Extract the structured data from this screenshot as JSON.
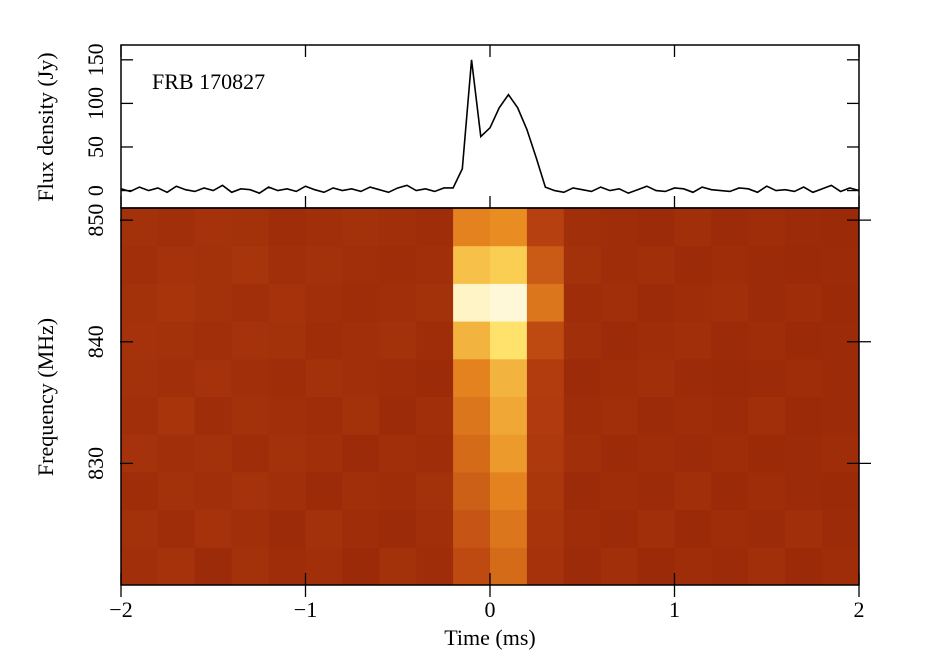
{
  "chart_data": [
    {
      "type": "line",
      "ylabel": "Flux density (Jy)",
      "annotation": "FRB 170827",
      "x": [
        -2,
        -1.95,
        -1.9,
        -1.85,
        -1.8,
        -1.75,
        -1.7,
        -1.65,
        -1.6,
        -1.55,
        -1.5,
        -1.45,
        -1.4,
        -1.35,
        -1.3,
        -1.25,
        -1.2,
        -1.15,
        -1.1,
        -1.05,
        -1,
        -0.95,
        -0.9,
        -0.85,
        -0.8,
        -0.75,
        -0.7,
        -0.65,
        -0.6,
        -0.55,
        -0.5,
        -0.45,
        -0.4,
        -0.35,
        -0.3,
        -0.25,
        -0.2,
        -0.15,
        -0.1,
        -0.05,
        0,
        0.05,
        0.1,
        0.15,
        0.2,
        0.25,
        0.3,
        0.35,
        0.4,
        0.45,
        0.5,
        0.55,
        0.6,
        0.65,
        0.7,
        0.75,
        0.8,
        0.85,
        0.9,
        0.95,
        1,
        1.05,
        1.1,
        1.15,
        1.2,
        1.25,
        1.3,
        1.35,
        1.4,
        1.45,
        1.5,
        1.55,
        1.6,
        1.65,
        1.7,
        1.75,
        1.8,
        1.85,
        1.9,
        1.95,
        2
      ],
      "values": [
        2,
        -1,
        4,
        0,
        3,
        -2,
        5,
        1,
        -1,
        3,
        0,
        6,
        -2,
        2,
        1,
        -3,
        4,
        0,
        2,
        -1,
        5,
        1,
        -2,
        3,
        0,
        2,
        -1,
        4,
        1,
        -2,
        3,
        6,
        0,
        2,
        -1,
        3,
        3,
        25,
        150,
        62,
        72,
        95,
        110,
        95,
        70,
        38,
        4,
        0,
        -2,
        3,
        1,
        -1,
        4,
        0,
        2,
        -3,
        1,
        5,
        0,
        -1,
        3,
        2,
        -2,
        4,
        1,
        0,
        -1,
        3,
        2,
        -2,
        5,
        0,
        1,
        -1,
        4,
        -2,
        2,
        6,
        -1,
        3,
        0
      ],
      "color": "#000000",
      "xlim": [
        -2,
        2
      ],
      "xticks": [
        -2,
        -1,
        0,
        1,
        2
      ],
      "ylim": [
        -20,
        167
      ],
      "yticks": [
        0,
        50,
        100,
        150
      ]
    },
    {
      "type": "heatmap",
      "xlabel": "Time (ms)",
      "ylabel": "Frequency (MHz)",
      "xlim": [
        -2,
        2
      ],
      "xticks": [
        {
          "value": -2,
          "label": "−2"
        },
        {
          "value": -1,
          "label": "−1"
        },
        0,
        1,
        2
      ],
      "ylim": [
        820,
        851
      ],
      "yticks": [
        830,
        840,
        850
      ],
      "xbins": [
        -2,
        -1.8,
        -1.6,
        -1.4,
        -1.2,
        -1,
        -0.8,
        -0.6,
        -0.4,
        -0.2,
        0,
        0.2,
        0.4,
        0.6,
        0.8,
        1,
        1.2,
        1.4,
        1.6,
        1.8,
        2
      ],
      "ybins": [
        820,
        823.1,
        826.2,
        829.3,
        832.4,
        835.5,
        838.6,
        841.7,
        844.8,
        847.9,
        851
      ],
      "colormap": [
        "#9a2a08",
        "#b84010",
        "#e88a20",
        "#ffe060",
        "#fff8d8"
      ],
      "z": [
        [
          0.4,
          0.42,
          0.38,
          0.41,
          0.39,
          0.4,
          0.37,
          0.41,
          0.39,
          0.52,
          0.58,
          0.42,
          0.38,
          0.4,
          0.37,
          0.39,
          0.38,
          0.4,
          0.37,
          0.39
        ],
        [
          0.41,
          0.39,
          0.42,
          0.4,
          0.38,
          0.41,
          0.39,
          0.38,
          0.4,
          0.54,
          0.6,
          0.43,
          0.39,
          0.38,
          0.4,
          0.37,
          0.39,
          0.38,
          0.4,
          0.38
        ],
        [
          0.39,
          0.41,
          0.4,
          0.42,
          0.4,
          0.38,
          0.4,
          0.39,
          0.41,
          0.56,
          0.62,
          0.44,
          0.38,
          0.39,
          0.38,
          0.4,
          0.37,
          0.39,
          0.38,
          0.37
        ],
        [
          0.42,
          0.4,
          0.41,
          0.39,
          0.41,
          0.4,
          0.38,
          0.4,
          0.39,
          0.58,
          0.66,
          0.46,
          0.4,
          0.38,
          0.39,
          0.38,
          0.39,
          0.37,
          0.38,
          0.39
        ],
        [
          0.4,
          0.43,
          0.39,
          0.41,
          0.4,
          0.39,
          0.41,
          0.38,
          0.4,
          0.6,
          0.68,
          0.47,
          0.39,
          0.4,
          0.38,
          0.39,
          0.38,
          0.4,
          0.37,
          0.38
        ],
        [
          0.41,
          0.4,
          0.42,
          0.4,
          0.39,
          0.41,
          0.4,
          0.39,
          0.38,
          0.62,
          0.7,
          0.48,
          0.38,
          0.39,
          0.4,
          0.38,
          0.37,
          0.38,
          0.39,
          0.38
        ],
        [
          0.42,
          0.41,
          0.4,
          0.42,
          0.41,
          0.39,
          0.4,
          0.41,
          0.39,
          0.7,
          0.78,
          0.52,
          0.4,
          0.38,
          0.39,
          0.4,
          0.38,
          0.39,
          0.37,
          0.38
        ],
        [
          0.41,
          0.43,
          0.41,
          0.4,
          0.42,
          0.4,
          0.39,
          0.4,
          0.41,
          0.88,
          0.9,
          0.6,
          0.39,
          0.4,
          0.38,
          0.39,
          0.4,
          0.38,
          0.39,
          0.37
        ],
        [
          0.4,
          0.42,
          0.41,
          0.43,
          0.4,
          0.41,
          0.4,
          0.39,
          0.4,
          0.72,
          0.74,
          0.55,
          0.41,
          0.39,
          0.4,
          0.38,
          0.39,
          0.38,
          0.37,
          0.38
        ],
        [
          0.41,
          0.4,
          0.42,
          0.41,
          0.39,
          0.4,
          0.41,
          0.4,
          0.39,
          0.62,
          0.64,
          0.5,
          0.4,
          0.39,
          0.38,
          0.4,
          0.38,
          0.39,
          0.38,
          0.37
        ]
      ]
    }
  ]
}
